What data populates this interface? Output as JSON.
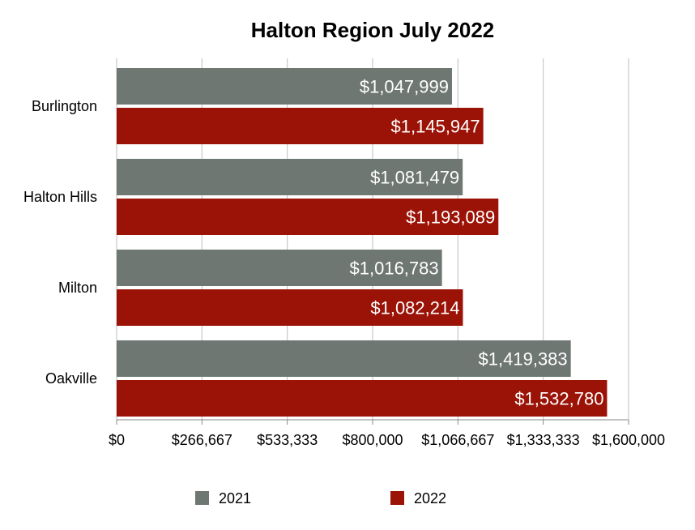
{
  "chart_data": {
    "type": "bar",
    "orientation": "horizontal",
    "title": "Halton Region July 2022",
    "categories": [
      "Burlington",
      "Halton Hills",
      "Milton",
      "Oakville"
    ],
    "series": [
      {
        "name": "2021",
        "color": "#6f7773",
        "values": [
          1047999,
          1081479,
          1016783,
          1419383
        ],
        "labels": [
          "$1,047,999",
          "$1,081,479",
          "$1,016,783",
          "$1,419,383"
        ]
      },
      {
        "name": "2022",
        "color": "#9b1206",
        "values": [
          1145947,
          1193089,
          1082214,
          1532780
        ],
        "labels": [
          "$1,145,947",
          "$1,193,089",
          "$1,082,214",
          "$1,532,780"
        ]
      }
    ],
    "xlim": [
      0,
      1600000
    ],
    "xticks": [
      0,
      266667,
      533333,
      800000,
      1066667,
      1333333,
      1600000
    ],
    "xtick_labels": [
      "$0",
      "$266,667",
      "$533,333",
      "$800,000",
      "$1,066,667",
      "$1,333,333",
      "$1,600,000"
    ],
    "grid": true,
    "legend_position": "bottom"
  }
}
